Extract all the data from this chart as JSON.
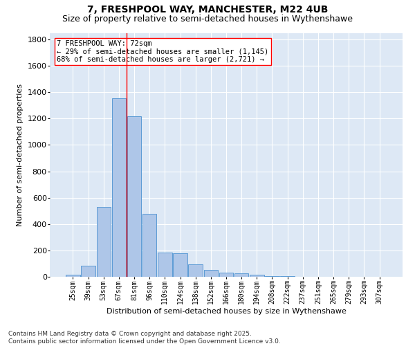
{
  "title": "7, FRESHPOOL WAY, MANCHESTER, M22 4UB",
  "subtitle": "Size of property relative to semi-detached houses in Wythenshawe",
  "xlabel": "Distribution of semi-detached houses by size in Wythenshawe",
  "ylabel": "Number of semi-detached properties",
  "categories": [
    "25sqm",
    "39sqm",
    "53sqm",
    "67sqm",
    "81sqm",
    "96sqm",
    "110sqm",
    "124sqm",
    "138sqm",
    "152sqm",
    "166sqm",
    "180sqm",
    "194sqm",
    "208sqm",
    "222sqm",
    "237sqm",
    "251sqm",
    "265sqm",
    "279sqm",
    "293sqm",
    "307sqm"
  ],
  "values": [
    18,
    85,
    530,
    1355,
    1220,
    475,
    185,
    180,
    95,
    50,
    30,
    25,
    18,
    5,
    5,
    2,
    0,
    0,
    0,
    0,
    0
  ],
  "bar_color": "#aec6e8",
  "bar_edge_color": "#5b9bd5",
  "vline_x": 3.5,
  "vline_color": "red",
  "annotation_text": "7 FRESHPOOL WAY: 72sqm\n← 29% of semi-detached houses are smaller (1,145)\n68% of semi-detached houses are larger (2,721) →",
  "annotation_box_color": "white",
  "annotation_box_edge": "red",
  "ylim": [
    0,
    1850
  ],
  "yticks": [
    0,
    200,
    400,
    600,
    800,
    1000,
    1200,
    1400,
    1600,
    1800
  ],
  "background_color": "#dde8f5",
  "footer_text": "Contains HM Land Registry data © Crown copyright and database right 2025.\nContains public sector information licensed under the Open Government Licence v3.0.",
  "title_fontsize": 10,
  "subtitle_fontsize": 9,
  "xlabel_fontsize": 8,
  "ylabel_fontsize": 8,
  "tick_fontsize": 7,
  "ytick_fontsize": 8,
  "annotation_fontsize": 7.5,
  "footer_fontsize": 6.5
}
